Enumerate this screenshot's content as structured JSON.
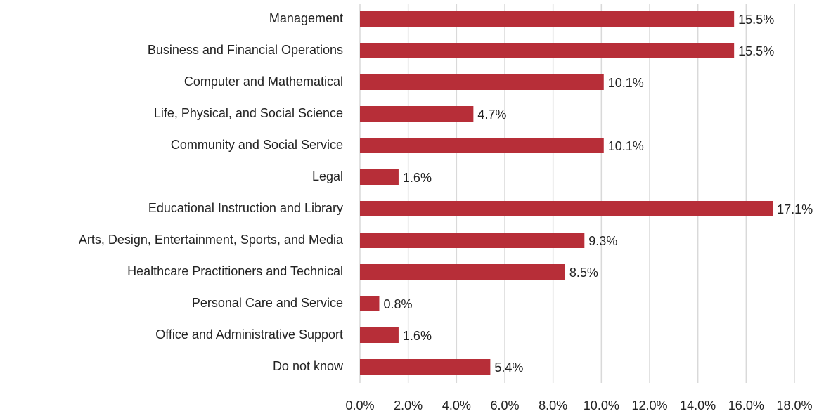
{
  "chart_data": {
    "type": "hbar",
    "categories": [
      "Management",
      "Business and Financial Operations",
      "Computer and Mathematical",
      "Life, Physical, and Social Science",
      "Community and Social Service",
      "Legal",
      "Educational Instruction and Library",
      "Arts, Design, Entertainment, Sports, and Media",
      "Healthcare Practitioners and Technical",
      "Personal Care and Service",
      "Office and Administrative Support",
      "Do not know"
    ],
    "values": [
      15.5,
      15.5,
      10.1,
      4.7,
      10.1,
      1.6,
      17.1,
      9.3,
      8.5,
      0.8,
      1.6,
      5.4
    ],
    "value_labels": [
      "15.5%",
      "15.5%",
      "10.1%",
      "4.7%",
      "10.1%",
      "1.6%",
      "17.1%",
      "9.3%",
      "8.5%",
      "0.8%",
      "1.6%",
      "5.4%"
    ],
    "color": "#b72e38",
    "xlim": [
      0,
      18
    ],
    "xticks": [
      {
        "value": 0,
        "label": "0.0%"
      },
      {
        "value": 2,
        "label": "2.0%"
      },
      {
        "value": 4,
        "label": "4.0%"
      },
      {
        "value": 6,
        "label": "6.0%"
      },
      {
        "value": 8,
        "label": "8.0%"
      },
      {
        "value": 10,
        "label": "10.0%"
      },
      {
        "value": 12,
        "label": "12.0%"
      },
      {
        "value": 14,
        "label": "14.0%"
      },
      {
        "value": 16,
        "label": "16.0%"
      },
      {
        "value": 18,
        "label": "18.0%"
      }
    ],
    "grid": true
  }
}
